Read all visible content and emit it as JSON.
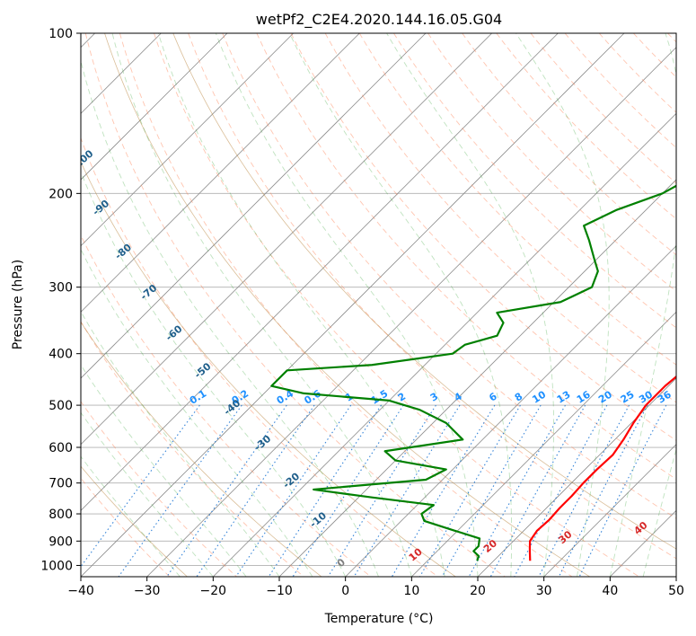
{
  "chart_data": {
    "type": "line",
    "title": "wetPf2_C2E4.2020.144.16.05.G04",
    "xlabel": "Temperature (°C)",
    "ylabel": "Pressure (hPa)",
    "xlim": [
      -40,
      50
    ],
    "ylim": [
      1050,
      100
    ],
    "y_scale": "log",
    "grid": true,
    "x_ticks": [
      -40,
      -30,
      -20,
      -10,
      0,
      10,
      20,
      30,
      40,
      50
    ],
    "y_ticks": [
      100,
      200,
      300,
      400,
      500,
      600,
      700,
      800,
      900,
      1000
    ],
    "series": [
      {
        "color": "#ff0000",
        "points": [
          [
            -0.5,
            100
          ],
          [
            -1.5,
            110
          ],
          [
            -1.5,
            120
          ],
          [
            -0.5,
            130
          ],
          [
            1,
            140
          ],
          [
            2.5,
            150
          ],
          [
            4,
            165
          ],
          [
            5.5,
            180
          ],
          [
            6.5,
            200
          ],
          [
            9,
            220
          ],
          [
            10.5,
            240
          ],
          [
            11.5,
            270
          ],
          [
            13,
            300
          ],
          [
            15,
            340
          ],
          [
            17.5,
            380
          ],
          [
            19.5,
            395
          ],
          [
            20,
            420
          ],
          [
            19.8,
            440
          ],
          [
            19.5,
            460
          ],
          [
            19.5,
            500
          ],
          [
            20.3,
            540
          ],
          [
            21.3,
            580
          ],
          [
            22,
            620
          ],
          [
            21.8,
            660
          ],
          [
            21.8,
            700
          ],
          [
            22,
            740
          ],
          [
            22,
            780
          ],
          [
            22.2,
            820
          ],
          [
            22,
            860
          ],
          [
            22.5,
            900
          ],
          [
            24,
            940
          ],
          [
            25.5,
            980
          ]
        ]
      },
      {
        "color": "#008000",
        "points": [
          [
            -1.5,
            100
          ],
          [
            -3,
            110
          ],
          [
            -3.5,
            120
          ],
          [
            -2.5,
            130
          ],
          [
            -3,
            140
          ],
          [
            -5,
            160
          ],
          [
            -7,
            180
          ],
          [
            -10,
            200
          ],
          [
            -14.5,
            215
          ],
          [
            -17,
            230
          ],
          [
            -14,
            245
          ],
          [
            -10.5,
            265
          ],
          [
            -8,
            280
          ],
          [
            -6.5,
            300
          ],
          [
            -9,
            320
          ],
          [
            -17,
            335
          ],
          [
            -14.5,
            350
          ],
          [
            -13.5,
            370
          ],
          [
            -17,
            385
          ],
          [
            -17.5,
            400
          ],
          [
            -28,
            420
          ],
          [
            -40,
            430
          ],
          [
            -40,
            460
          ],
          [
            -34,
            475
          ],
          [
            -20,
            490
          ],
          [
            -14,
            510
          ],
          [
            -8,
            540
          ],
          [
            -3,
            580
          ],
          [
            -13,
            610
          ],
          [
            -10,
            635
          ],
          [
            -1,
            660
          ],
          [
            -2.5,
            690
          ],
          [
            -18,
            720
          ],
          [
            -8,
            745
          ],
          [
            2.5,
            770
          ],
          [
            2,
            800
          ],
          [
            3.5,
            825
          ],
          [
            9.5,
            860
          ],
          [
            14.5,
            890
          ],
          [
            15.5,
            920
          ],
          [
            15.5,
            940
          ],
          [
            17,
            960
          ],
          [
            17.5,
            980
          ]
        ]
      }
    ],
    "isotherm_labels": [
      "-100",
      "-90",
      "-80",
      "-70",
      "-60",
      "-50",
      "-40",
      "-30",
      "-20",
      "-10",
      "0",
      "10",
      "20",
      "30",
      "40"
    ],
    "isotherm_label_colors": {
      "cold": "#1f5f8b",
      "zero": "#7f7f7f",
      "warm": "#d62728"
    },
    "mixing_ratio_labels": [
      "0.1",
      "0.2",
      "0.4",
      "0.6",
      "1",
      "1.5",
      "2",
      "3",
      "4",
      "6",
      "8",
      "10",
      "13",
      "16",
      "20",
      "25",
      "30",
      "36"
    ],
    "mixing_ratio_values": [
      0.1,
      0.2,
      0.4,
      0.6,
      1,
      1.5,
      2,
      3,
      4,
      6,
      8,
      10,
      13,
      16,
      20,
      25,
      30,
      36
    ],
    "mixing_ratio_label_color": "#1e90ff"
  }
}
